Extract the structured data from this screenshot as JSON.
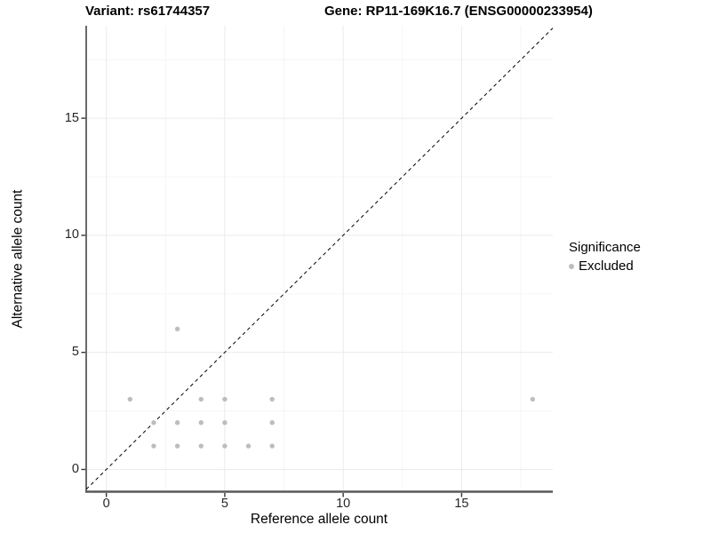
{
  "chart_data": {
    "type": "scatter",
    "titles": {
      "left": "Variant: rs61744357",
      "right": "Gene: RP11-169K16.7 (ENSG00000233954)"
    },
    "xlabel": "Reference allele count",
    "ylabel": "Alternative allele count",
    "xlim": [
      -0.85,
      18.85
    ],
    "ylim": [
      -0.95,
      18.95
    ],
    "x_ticks": [
      0,
      5,
      10,
      15
    ],
    "y_ticks": [
      0,
      5,
      10,
      15
    ],
    "x_minor_gridlines": [
      2.5,
      7.5,
      12.5,
      17.5
    ],
    "y_minor_gridlines": [
      2.5,
      7.5,
      12.5,
      17.5
    ],
    "grid": true,
    "identity_line": {
      "equation": "y = x",
      "style": "dashed",
      "color": "#000000"
    },
    "series": [
      {
        "name": "Excluded",
        "color": "#bdbdbd",
        "points": [
          [
            1,
            3
          ],
          [
            4,
            3
          ],
          [
            5,
            3
          ],
          [
            7,
            3
          ],
          [
            18,
            3
          ],
          [
            2,
            2
          ],
          [
            3,
            2
          ],
          [
            4,
            2
          ],
          [
            5,
            2
          ],
          [
            7,
            2
          ],
          [
            2,
            1
          ],
          [
            3,
            1
          ],
          [
            4,
            1
          ],
          [
            5,
            1
          ],
          [
            6,
            1
          ],
          [
            7,
            1
          ],
          [
            3,
            6
          ]
        ]
      }
    ],
    "legend": {
      "title": "Significance",
      "position": "right",
      "items": [
        {
          "label": "Excluded",
          "color": "#bdbdbd"
        }
      ]
    },
    "style": {
      "grid_major_color": "#ebebeb",
      "grid_minor_color": "#f5f5f5",
      "y_axis_line_color": "#2b2b2b",
      "x_axis_line_color": "#595959",
      "tick_mark_color": "#333333",
      "point_radius_px": 2.7
    }
  }
}
